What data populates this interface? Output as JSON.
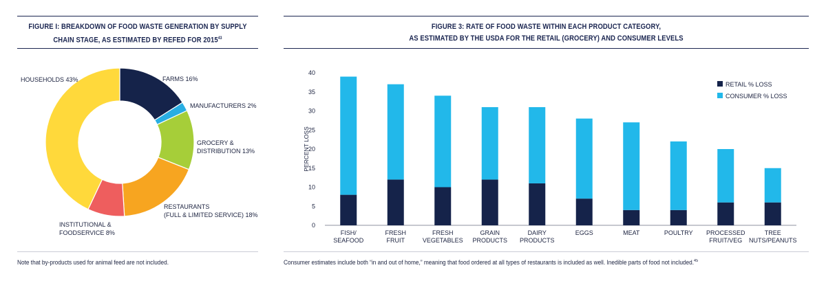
{
  "left": {
    "title_line1": "FIGURE I: BREAKDOWN OF FOOD WASTE GENERATION BY SUPPLY",
    "title_line2": "CHAIN STAGE, AS ESTIMATED BY REFED FOR 2015",
    "title_ref": "43",
    "note": "Note that by-products used for animal feed are not included."
  },
  "right": {
    "title_line1": "FIGURE 3: RATE OF FOOD WASTE WITHIN EACH PRODUCT CATEGORY,",
    "title_line2": "AS ESTIMATED BY THE USDA FOR THE RETAIL (GROCERY) AND CONSUMER LEVELS",
    "note": "Consumer estimates include both “in and out of home,” meaning that food ordered at all types of restaurants is included as well. Inedible parts of food not included.",
    "note_ref": "45"
  },
  "colors": {
    "navy": "#15234a",
    "cyan": "#22b8ea",
    "farms": "#15234a",
    "manufacturers": "#29aee3",
    "grocery": "#a6ce39",
    "restaurants": "#f7a520",
    "institutional": "#ee5e5e",
    "households": "#ffd93b"
  },
  "chart_data": [
    {
      "type": "pie",
      "title": "FIGURE I: BREAKDOWN OF FOOD WASTE GENERATION BY SUPPLY CHAIN STAGE, AS ESTIMATED BY REFED FOR 2015",
      "slices": [
        {
          "key": "farms",
          "label": "FARMS 16%",
          "value": 16,
          "color": "#15234a"
        },
        {
          "key": "manufacturers",
          "label": "MANUFACTURERS 2%",
          "value": 2,
          "color": "#29aee3"
        },
        {
          "key": "grocery",
          "label_lines": [
            "GROCERY &",
            "DISTRIBUTION 13%"
          ],
          "value": 13,
          "color": "#a6ce39"
        },
        {
          "key": "restaurants",
          "label_lines": [
            "RESTAURANTS",
            "(FULL & LIMITED SERVICE) 18%"
          ],
          "value": 18,
          "color": "#f7a520"
        },
        {
          "key": "institutional",
          "label_lines": [
            "INSTITUTIONAL &",
            "FOODSERVICE 8%"
          ],
          "value": 8,
          "color": "#ee5e5e"
        },
        {
          "key": "households",
          "label": "HOUSEHOLDS 43%",
          "value": 43,
          "color": "#ffd93b"
        }
      ]
    },
    {
      "type": "bar",
      "stacked": true,
      "title": "FIGURE 3: RATE OF FOOD WASTE WITHIN EACH PRODUCT CATEGORY, AS ESTIMATED BY THE USDA FOR THE RETAIL (GROCERY) AND CONSUMER LEVELS",
      "ylabel": "PERCENT LOSS",
      "ylim": [
        0,
        40
      ],
      "yticks": [
        "0",
        "5",
        "10",
        "15",
        "20",
        "25",
        "30",
        "35",
        "40"
      ],
      "categories": [
        [
          "FISH/",
          "SEAFOOD"
        ],
        [
          "FRESH",
          "FRUIT"
        ],
        [
          "FRESH",
          "VEGETABLES"
        ],
        [
          "GRAIN",
          "PRODUCTS"
        ],
        [
          "DAIRY",
          "PRODUCTS"
        ],
        [
          "EGGS"
        ],
        [
          "MEAT"
        ],
        [
          "POULTRY"
        ],
        [
          "PROCESSED",
          "FRUIT/VEG"
        ],
        [
          "TREE",
          "NUTS/PEANUTS"
        ]
      ],
      "series": [
        {
          "name": "RETAIL % LOSS",
          "color": "#15234a",
          "values": [
            8,
            12,
            10,
            12,
            11,
            7,
            4,
            4,
            6,
            6
          ]
        },
        {
          "name": "CONSUMER % LOSS",
          "color": "#22b8ea",
          "values": [
            31,
            25,
            24,
            19,
            20,
            21,
            23,
            18,
            14,
            9
          ]
        }
      ],
      "legend": "top-right"
    }
  ]
}
